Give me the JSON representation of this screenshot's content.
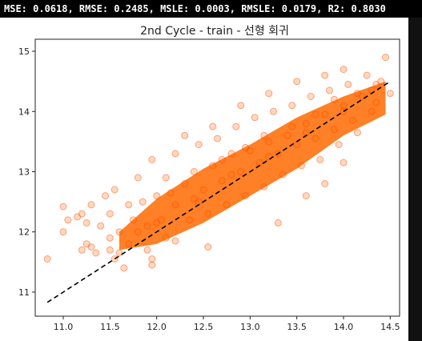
{
  "metrics_text": "MSE: 0.0618, RMSE: 0.2485, MSLE: 0.0003, RMSLE: 0.0179, R2: 0.8030",
  "colors": {
    "point_fill": "#ff6a00",
    "point_edge": "#ff4000",
    "reference_line": "#000000"
  },
  "chart_data": {
    "type": "scatter",
    "title": "2nd Cycle - train - 선형 회귀",
    "xlabel": "",
    "ylabel": "",
    "xlim": [
      10.7,
      14.6
    ],
    "ylim": [
      10.6,
      15.2
    ],
    "x_ticks": [
      11.0,
      11.5,
      12.0,
      12.5,
      13.0,
      13.5,
      14.0,
      14.5
    ],
    "x_tick_labels": [
      "11.0",
      "11.5",
      "12.0",
      "12.5",
      "13.0",
      "13.5",
      "14.0",
      "14.5"
    ],
    "y_ticks": [
      11,
      12,
      13,
      14,
      15
    ],
    "y_tick_labels": [
      "11",
      "12",
      "13",
      "14",
      "15"
    ],
    "grid": false,
    "reference_line": {
      "x": [
        10.83,
        14.5
      ],
      "y": [
        10.83,
        14.5
      ],
      "style": "dashed"
    },
    "series": [
      {
        "points": [
          [
            10.83,
            11.55
          ],
          [
            11.0,
            12.0
          ],
          [
            11.0,
            12.42
          ],
          [
            11.05,
            12.2
          ],
          [
            11.15,
            12.25
          ],
          [
            11.2,
            12.3
          ],
          [
            11.25,
            12.15
          ],
          [
            11.3,
            12.45
          ],
          [
            11.4,
            12.1
          ],
          [
            11.45,
            12.6
          ],
          [
            11.5,
            12.3
          ],
          [
            11.5,
            11.9
          ],
          [
            11.55,
            12.7
          ],
          [
            11.6,
            12.0
          ],
          [
            11.6,
            11.65
          ],
          [
            11.65,
            11.4
          ],
          [
            11.7,
            12.45
          ],
          [
            11.7,
            11.8
          ],
          [
            11.75,
            12.2
          ],
          [
            11.8,
            12.9
          ],
          [
            11.85,
            12.5
          ],
          [
            11.9,
            11.7
          ],
          [
            11.9,
            12.1
          ],
          [
            11.95,
            13.2
          ],
          [
            11.95,
            11.55
          ],
          [
            12.0,
            12.6
          ],
          [
            12.05,
            12.2
          ],
          [
            12.1,
            12.9
          ],
          [
            12.1,
            11.9
          ],
          [
            12.2,
            12.45
          ],
          [
            12.2,
            13.3
          ],
          [
            12.3,
            12.8
          ],
          [
            12.35,
            12.2
          ],
          [
            12.4,
            13.0
          ],
          [
            12.45,
            13.45
          ],
          [
            12.5,
            12.7
          ],
          [
            12.55,
            12.3
          ],
          [
            12.6,
            13.1
          ],
          [
            12.65,
            13.55
          ],
          [
            12.7,
            12.85
          ],
          [
            12.75,
            12.45
          ],
          [
            12.8,
            13.3
          ],
          [
            12.85,
            13.75
          ],
          [
            12.9,
            13.0
          ],
          [
            12.95,
            12.6
          ],
          [
            13.0,
            13.35
          ],
          [
            13.05,
            13.9
          ],
          [
            13.1,
            13.15
          ],
          [
            13.15,
            12.75
          ],
          [
            13.2,
            13.5
          ],
          [
            13.25,
            14.0
          ],
          [
            13.3,
            13.3
          ],
          [
            13.35,
            12.95
          ],
          [
            13.4,
            13.6
          ],
          [
            13.45,
            14.1
          ],
          [
            13.5,
            13.45
          ],
          [
            13.55,
            13.1
          ],
          [
            13.6,
            13.8
          ],
          [
            13.65,
            14.25
          ],
          [
            13.7,
            13.55
          ],
          [
            13.75,
            13.2
          ],
          [
            13.8,
            13.95
          ],
          [
            13.85,
            14.35
          ],
          [
            13.9,
            13.7
          ],
          [
            13.95,
            13.45
          ],
          [
            14.0,
            14.1
          ],
          [
            14.05,
            14.45
          ],
          [
            14.1,
            13.85
          ],
          [
            14.15,
            13.65
          ],
          [
            14.2,
            14.25
          ],
          [
            14.25,
            14.6
          ],
          [
            14.3,
            14.0
          ],
          [
            14.35,
            14.15
          ],
          [
            14.4,
            14.5
          ],
          [
            14.45,
            14.9
          ],
          [
            14.5,
            14.3
          ],
          [
            14.0,
            13.15
          ],
          [
            13.8,
            12.8
          ],
          [
            13.6,
            12.6
          ],
          [
            13.3,
            12.15
          ],
          [
            12.55,
            11.75
          ],
          [
            12.2,
            11.85
          ],
          [
            11.95,
            11.45
          ],
          [
            11.5,
            11.7
          ],
          [
            11.55,
            11.55
          ],
          [
            11.3,
            11.75
          ],
          [
            11.35,
            11.65
          ],
          [
            11.2,
            11.7
          ],
          [
            11.25,
            11.8
          ],
          [
            12.3,
            13.6
          ],
          [
            12.6,
            13.75
          ],
          [
            12.9,
            14.1
          ],
          [
            13.2,
            14.3
          ],
          [
            13.5,
            14.5
          ],
          [
            13.8,
            14.6
          ],
          [
            14.0,
            14.7
          ],
          [
            12.0,
            12.15
          ],
          [
            12.4,
            12.55
          ],
          [
            12.8,
            12.95
          ],
          [
            13.2,
            13.25
          ],
          [
            13.6,
            13.65
          ],
          [
            14.0,
            14.0
          ],
          [
            14.3,
            14.35
          ],
          [
            11.8,
            12.0
          ],
          [
            12.15,
            12.65
          ],
          [
            12.45,
            12.5
          ],
          [
            12.7,
            13.2
          ],
          [
            12.95,
            13.4
          ],
          [
            13.15,
            13.6
          ],
          [
            13.45,
            13.75
          ],
          [
            13.7,
            13.95
          ],
          [
            13.9,
            14.2
          ],
          [
            14.15,
            14.3
          ],
          [
            14.35,
            14.45
          ]
        ]
      }
    ]
  }
}
